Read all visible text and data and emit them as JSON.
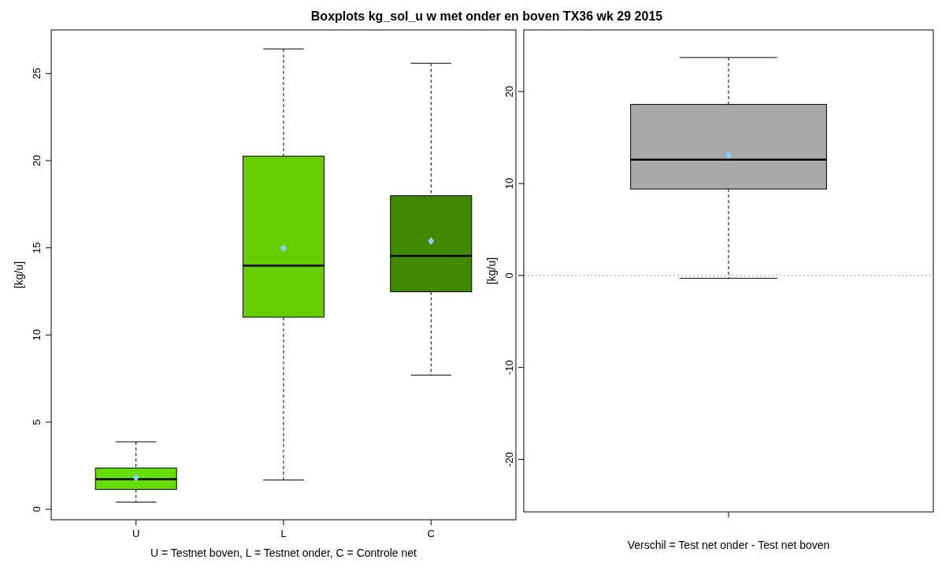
{
  "chart_data": [
    {
      "type": "box",
      "title": "Boxplots kg_sol_u w met onder en boven TX36 wk 29 2015",
      "xlabel": "U = Testnet boven, L = Testnet onder, C = Controle net",
      "ylabel": "[kg/u]",
      "categories": [
        "U",
        "L",
        "C"
      ],
      "colors": [
        "#66dd00",
        "#66cc00",
        "#3f8800"
      ],
      "ylim": [
        -0.6,
        27.5
      ],
      "yticks": [
        0,
        5,
        10,
        15,
        20,
        25
      ],
      "boxes": [
        {
          "low": 0.41,
          "q1": 1.14,
          "median": 1.73,
          "q3": 2.37,
          "high": 3.87,
          "mean": 1.82
        },
        {
          "low": 1.68,
          "q1": 11.02,
          "median": 13.98,
          "q3": 20.26,
          "high": 26.41,
          "mean": 14.98
        },
        {
          "low": 7.7,
          "q1": 12.48,
          "median": 14.53,
          "q3": 17.99,
          "high": 25.59,
          "mean": 15.39
        }
      ]
    },
    {
      "type": "box",
      "xlabel": "Verschil = Test net onder - Test net boven",
      "ylabel": "[kg/u]",
      "categories": [
        null
      ],
      "colors": [
        "#a9a9a9"
      ],
      "ylim": [
        -25.7,
        26.7
      ],
      "yticks": [
        -20,
        -10,
        0,
        10,
        20
      ],
      "boxes": [
        {
          "low": -0.3,
          "q1": 9.4,
          "median": 12.6,
          "q3": 18.6,
          "high": 23.7,
          "mean": 13.1
        }
      ],
      "ref_lines": [
        {
          "axis": "y",
          "value": 0,
          "color": "#999999",
          "line_style": "dotted"
        }
      ]
    }
  ]
}
